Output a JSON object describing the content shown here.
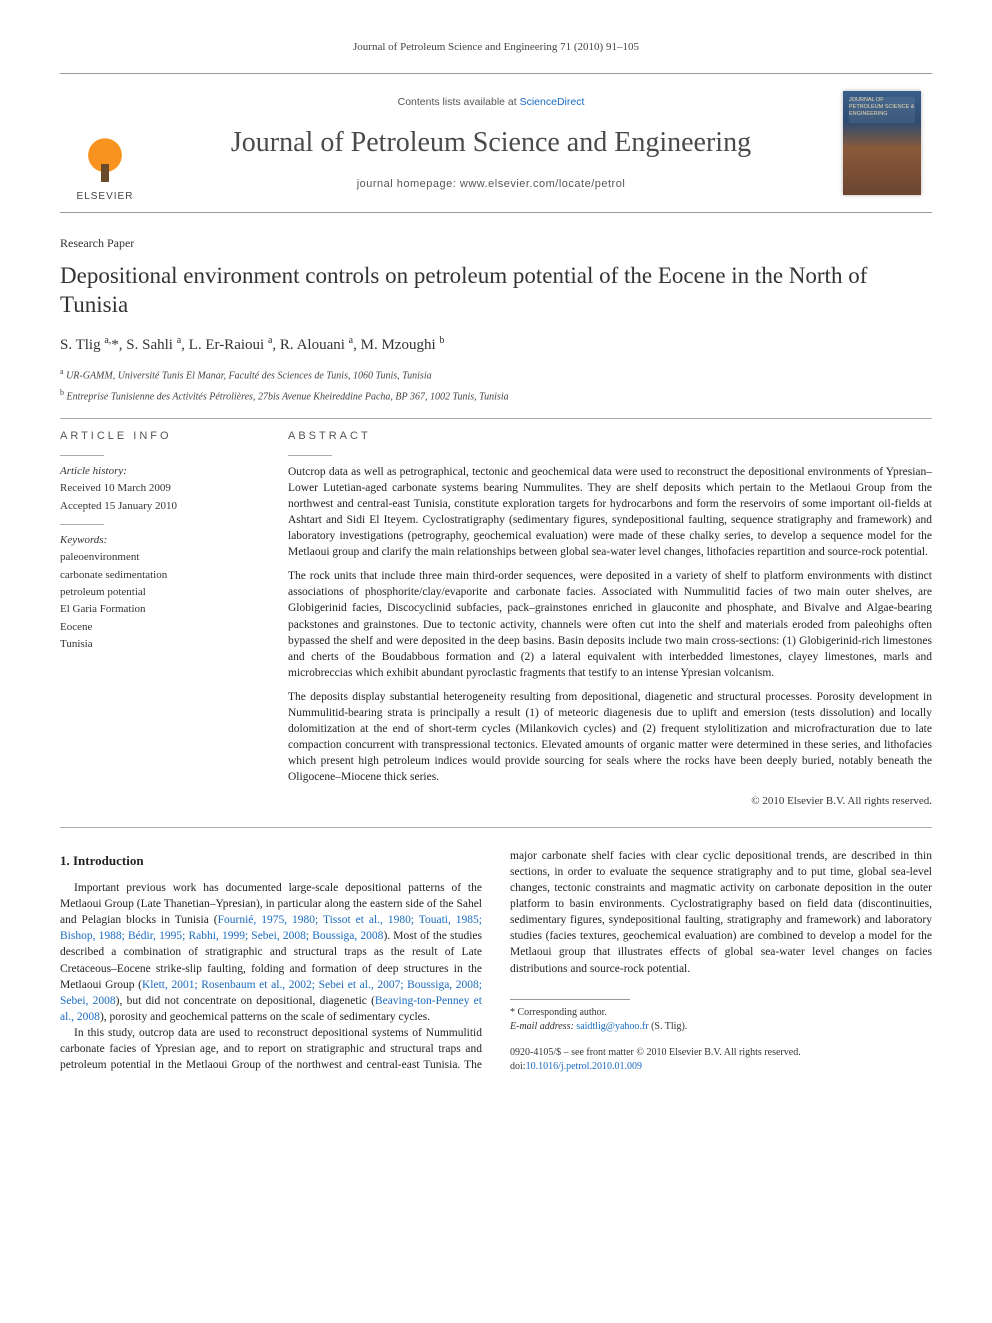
{
  "runner": "Journal of Petroleum Science and Engineering 71 (2010) 91–105",
  "masthead": {
    "elsevier": "ELSEVIER",
    "contents_prefix": "Contents lists available at ",
    "contents_link": "ScienceDirect",
    "journal_name": "Journal of Petroleum Science and Engineering",
    "homepage_prefix": "journal homepage: ",
    "homepage_url": "www.elsevier.com/locate/petrol",
    "cover_text": "Journal of Petroleum Science & Engineering"
  },
  "article": {
    "type": "Research Paper",
    "title": "Depositional environment controls on petroleum potential of the Eocene in the North of Tunisia",
    "authors_html": "S. Tlig <sup>a,</sup>*, S. Sahli <sup>a</sup>, L. Er-Raioui <sup>a</sup>, R. Alouani <sup>a</sup>, M. Mzoughi <sup>b</sup>",
    "affiliations": [
      {
        "sup": "a",
        "text": "UR-GAMM, Université Tunis El Manar, Faculté des Sciences de Tunis, 1060 Tunis, Tunisia"
      },
      {
        "sup": "b",
        "text": "Entreprise Tunisienne des Activités Pétrolières, 27bis Avenue Kheireddine Pacha, BP 367, 1002 Tunis, Tunisia"
      }
    ]
  },
  "article_info": {
    "head": "article info",
    "history_label": "Article history:",
    "received": "Received 10 March 2009",
    "accepted": "Accepted 15 January 2010",
    "keywords_label": "Keywords:",
    "keywords": [
      "paleoenvironment",
      "carbonate sedimentation",
      "petroleum potential",
      "El Garia Formation",
      "Eocene",
      "Tunisia"
    ]
  },
  "abstract": {
    "head": "abstract",
    "paras": [
      "Outcrop data as well as petrographical, tectonic and geochemical data were used to reconstruct the depositional environments of Ypresian–Lower Lutetian-aged carbonate systems bearing Nummulites. They are shelf deposits which pertain to the Metlaoui Group from the northwest and central-east Tunisia, constitute exploration targets for hydrocarbons and form the reservoirs of some important oil-fields at Ashtart and Sidi El Iteyem. Cyclostratigraphy (sedimentary figures, syndepositional faulting, sequence stratigraphy and framework) and laboratory investigations (petrography, geochemical evaluation) were made of these chalky series, to develop a sequence model for the Metlaoui group and clarify the main relationships between global sea-water level changes, lithofacies repartition and source-rock potential.",
      "The rock units that include three main third-order sequences, were deposited in a variety of shelf to platform environments with distinct associations of phosphorite/clay/evaporite and carbonate facies. Associated with Nummulitid facies of two main outer shelves, are Globigerinid facies, Discocyclinid subfacies, pack–grainstones enriched in glauconite and phosphate, and Bivalve and Algae-bearing packstones and grainstones. Due to tectonic activity, channels were often cut into the shelf and materials eroded from paleohighs often bypassed the shelf and were deposited in the deep basins. Basin deposits include two main cross-sections: (1) Globigerinid-rich limestones and cherts of the Boudabbous formation and (2) a lateral equivalent with interbedded limestones, clayey limestones, marls and microbreccias which exhibit abundant pyroclastic fragments that testify to an intense Ypresian volcanism.",
      "The deposits display substantial heterogeneity resulting from depositional, diagenetic and structural processes. Porosity development in Nummulitid-bearing strata is principally a result (1) of meteoric diagenesis due to uplift and emersion (tests dissolution) and locally dolomitization at the end of short-term cycles (Milankovich cycles) and (2) frequent stylolitization and microfracturation due to late compaction concurrent with transpressional tectonics. Elevated amounts of organic matter were determined in these series, and lithofacies which present high petroleum indices would provide sourcing for seals where the rocks have been deeply buried, notably beneath the Oligocene–Miocene thick series."
    ],
    "copyright": "© 2010 Elsevier B.V. All rights reserved."
  },
  "body": {
    "section_num": "1.",
    "section_title": "Introduction",
    "col1_p1_pre": "Important previous work has documented large-scale depositional patterns of the Metlaoui Group (Late Thanetian–Ypresian), in particular along the eastern side of the Sahel and Pelagian blocks in Tunisia (",
    "col1_p1_cite1": "Fournié, 1975, 1980; Tissot et al., 1980; Touati, 1985; Bishop, 1988; Bédir, 1995; Rabhi, 1999; Sebei, 2008; Boussiga, 2008",
    "col1_p1_mid": "). Most of the studies described a combination of stratigraphic and structural traps as the result of Late Cretaceous–Eocene strike-slip faulting, folding and formation of deep structures in the Metlaoui Group (",
    "col1_p1_cite2": "Klett, 2001; Rosenbaum et al., 2002; Sebei et al., 2007; Boussiga, 2008; Sebei, 2008",
    "col1_p1_post": "), but did not concentrate on depositional, diagenetic (",
    "col1_p1_cite3": "Beaving-",
    "col2_p1_cite_cont": "ton-Penney et al., 2008",
    "col2_p1_post": "), porosity and geochemical patterns on the scale of sedimentary cycles.",
    "col2_p2": "In this study, outcrop data are used to reconstruct depositional systems of Nummulitid carbonate facies of Ypresian age, and to report on stratigraphic and structural traps and petroleum potential in the Metlaoui Group of the northwest and central-east Tunisia. The major carbonate shelf facies with clear cyclic depositional trends, are described in thin sections, in order to evaluate the sequence stratigraphy and to put time, global sea-level changes, tectonic constraints and magmatic activity on carbonate deposition in the outer platform to basin environments. Cyclostratigraphy based on field data (discontinuities, sedimentary figures, syndepositional faulting, stratigraphy and framework) and laboratory studies (facies textures, geochemical evaluation) are combined to develop a model for the Metlaoui group that illustrates effects of global sea-water level changes on facies distributions and source-rock potential."
  },
  "footnotes": {
    "corresp_label": "* Corresponding author.",
    "email_label": "E-mail address:",
    "email": "saidtlig@yahoo.fr",
    "email_who": "(S. Tlig)."
  },
  "footer": {
    "issn_line": "0920-4105/$ – see front matter © 2010 Elsevier B.V. All rights reserved.",
    "doi_label": "doi:",
    "doi": "10.1016/j.petrol.2010.01.009"
  },
  "colors": {
    "link": "#1a6bbf",
    "rule": "#999999",
    "text": "#1a1a1a",
    "elsevier_orange": "#f7931e"
  },
  "typography": {
    "body_pt": 11.5,
    "title_pt": 23,
    "journal_pt": 28,
    "runner_pt": 11,
    "footnote_pt": 10
  }
}
